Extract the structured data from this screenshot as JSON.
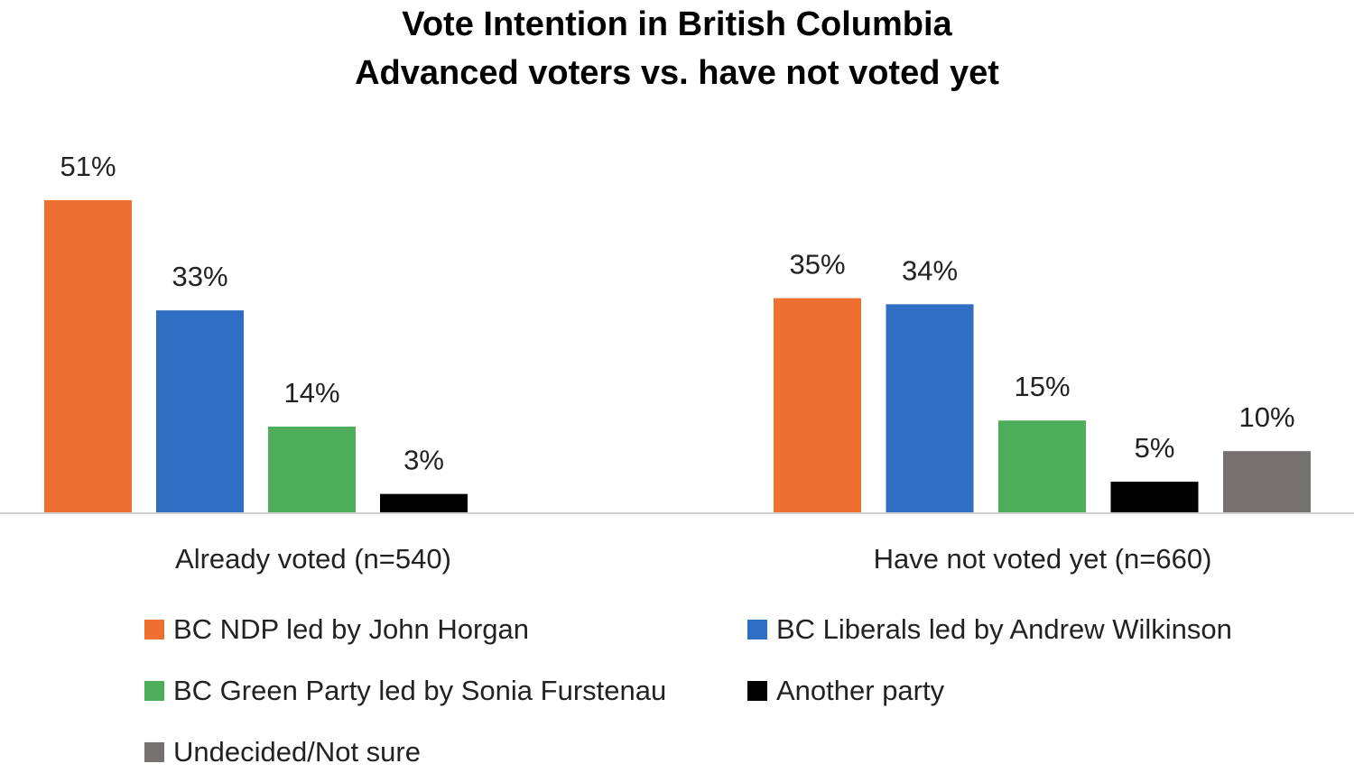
{
  "chart_data": {
    "type": "bar",
    "title": "Vote Intention in British Columbia",
    "subtitle": "Advanced voters vs. have not voted yet",
    "categories": [
      "Already voted (n=540)",
      "Have not voted yet (n=660)"
    ],
    "series": [
      {
        "name": "BC NDP led by John Horgan",
        "color": "#ED7031",
        "values": [
          51,
          35
        ],
        "labels": [
          "51%",
          "35%"
        ]
      },
      {
        "name": "BC Liberals led by Andrew Wilkinson",
        "color": "#2F6EC2",
        "values": [
          33,
          34
        ],
        "labels": [
          "33%",
          "34%"
        ]
      },
      {
        "name": "BC Green Party led by Sonia Furstenau",
        "color": "#4EAD5B",
        "values": [
          14,
          15
        ],
        "labels": [
          "14%",
          "15%"
        ]
      },
      {
        "name": "Another party",
        "color": "#000000",
        "values": [
          3,
          5
        ],
        "labels": [
          "3%",
          "5%"
        ]
      },
      {
        "name": "Undecided/Not sure",
        "color": "#767171",
        "values": [
          null,
          10
        ],
        "labels": [
          null,
          "10%"
        ]
      }
    ],
    "ylim": [
      0,
      51
    ],
    "grid": false,
    "legend_position": "bottom"
  }
}
